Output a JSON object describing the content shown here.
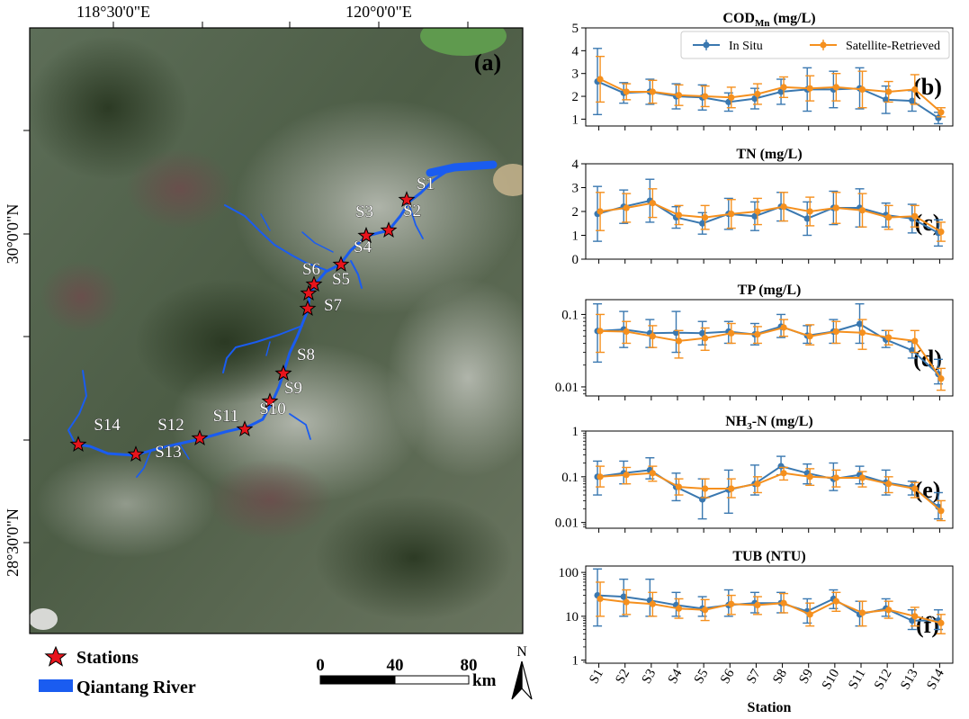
{
  "map": {
    "panel_label": "(a)",
    "lon_labels": [
      "118°30'0\"E",
      "120°0'0\"E"
    ],
    "lat_labels": [
      "30°0'0\"N",
      "28°30'0\"N"
    ],
    "north_label": "N",
    "scale_ticks": [
      "0",
      "40",
      "80"
    ],
    "scale_unit": "km",
    "legend": {
      "stations_label": "Stations",
      "river_label": "Qiantang River",
      "station_color": "#e8141c",
      "river_color": "#1a5cf0"
    },
    "stations": [
      "S1",
      "S2",
      "S3",
      "S4",
      "S5",
      "S6",
      "S7",
      "S8",
      "S9",
      "S10",
      "S11",
      "S12",
      "S13",
      "S14"
    ]
  },
  "chart_data": [
    {
      "type": "line",
      "panel": "(b)",
      "title_main": "COD",
      "title_sub": "Mn",
      "title_tail": " (mg/L)",
      "scale": "linear",
      "ylim": [
        0.7,
        5
      ],
      "yticks": [
        1,
        2,
        3,
        4,
        5
      ],
      "ytick_labels": [
        "1",
        "2",
        "3",
        "4",
        "5"
      ],
      "legend": [
        "In Situ",
        "Satellite-Retrieved"
      ],
      "series": [
        {
          "name": "In Situ",
          "values": [
            2.65,
            2.15,
            2.2,
            2.0,
            1.95,
            1.75,
            1.9,
            2.2,
            2.3,
            2.3,
            2.35,
            1.85,
            1.8,
            1.05
          ],
          "errors": [
            1.45,
            0.45,
            0.55,
            0.55,
            0.55,
            0.4,
            0.45,
            0.55,
            0.95,
            0.8,
            0.9,
            0.6,
            0.45,
            0.25
          ]
        },
        {
          "name": "Satellite-Retrieved",
          "values": [
            2.75,
            2.2,
            2.2,
            2.05,
            2.0,
            1.95,
            2.1,
            2.4,
            2.35,
            2.4,
            2.3,
            2.2,
            2.3,
            1.3
          ],
          "errors": [
            1.0,
            0.35,
            0.5,
            0.45,
            0.45,
            0.45,
            0.45,
            0.45,
            0.55,
            0.6,
            0.8,
            0.45,
            0.65,
            0.2
          ]
        }
      ]
    },
    {
      "type": "line",
      "panel": "(c)",
      "title_main": "TN",
      "title_sub": "",
      "title_tail": " (mg/L)",
      "scale": "linear",
      "ylim": [
        0,
        4
      ],
      "yticks": [
        0,
        1,
        2,
        3,
        4
      ],
      "ytick_labels": [
        "0",
        "1",
        "2",
        "3",
        "4"
      ],
      "series": [
        {
          "name": "In Situ",
          "values": [
            1.9,
            2.2,
            2.45,
            1.75,
            1.5,
            1.9,
            1.8,
            2.2,
            1.7,
            2.15,
            2.15,
            1.85,
            1.7,
            1.1
          ],
          "errors": [
            1.15,
            0.7,
            0.9,
            0.45,
            0.45,
            0.65,
            0.6,
            0.6,
            0.7,
            0.7,
            0.8,
            0.5,
            0.6,
            0.55
          ]
        },
        {
          "name": "Satellite-Retrieved",
          "values": [
            2.0,
            2.15,
            2.35,
            1.85,
            1.75,
            1.9,
            2.0,
            2.2,
            2.0,
            2.15,
            2.05,
            1.75,
            1.8,
            1.15
          ],
          "errors": [
            0.8,
            0.6,
            0.6,
            0.4,
            0.5,
            0.6,
            0.55,
            0.6,
            0.6,
            0.65,
            0.7,
            0.5,
            0.45,
            0.4
          ]
        }
      ]
    },
    {
      "type": "line",
      "panel": "(d)",
      "title_main": "TP",
      "title_sub": "",
      "title_tail": " (mg/L)",
      "scale": "log",
      "ylim": [
        0.0075,
        0.16
      ],
      "yticks": [
        0.01,
        0.1
      ],
      "ytick_labels": [
        "0.01",
        "0.1"
      ],
      "series": [
        {
          "name": "In Situ",
          "values": [
            0.059,
            0.062,
            0.055,
            0.056,
            0.055,
            0.058,
            0.053,
            0.068,
            0.051,
            0.058,
            0.074,
            0.045,
            0.032,
            0.015
          ],
          "lo": [
            0.022,
            0.035,
            0.035,
            0.03,
            0.038,
            0.04,
            0.038,
            0.048,
            0.04,
            0.04,
            0.04,
            0.035,
            0.025,
            0.011
          ],
          "hi": [
            0.14,
            0.11,
            0.085,
            0.11,
            0.08,
            0.08,
            0.075,
            0.1,
            0.07,
            0.085,
            0.14,
            0.06,
            0.042,
            0.024
          ]
        },
        {
          "name": "Satellite-Retrieved",
          "values": [
            0.059,
            0.058,
            0.05,
            0.043,
            0.047,
            0.055,
            0.053,
            0.066,
            0.05,
            0.058,
            0.056,
            0.048,
            0.043,
            0.013
          ],
          "lo": [
            0.03,
            0.04,
            0.035,
            0.025,
            0.032,
            0.04,
            0.04,
            0.05,
            0.038,
            0.04,
            0.033,
            0.038,
            0.03,
            0.009
          ],
          "hi": [
            0.1,
            0.08,
            0.07,
            0.06,
            0.065,
            0.075,
            0.068,
            0.085,
            0.072,
            0.08,
            0.085,
            0.06,
            0.06,
            0.018
          ]
        }
      ]
    },
    {
      "type": "line",
      "panel": "(e)",
      "title_main": "NH",
      "title_sub": "3",
      "title_tail": "-N (mg/L)",
      "scale": "log",
      "ylim": [
        0.0075,
        1
      ],
      "yticks": [
        0.01,
        0.1,
        1
      ],
      "ytick_labels": [
        "0.01",
        "0.1",
        "1"
      ],
      "series": [
        {
          "name": "In Situ",
          "values": [
            0.1,
            0.12,
            0.14,
            0.06,
            0.032,
            0.052,
            0.07,
            0.17,
            0.12,
            0.09,
            0.11,
            0.075,
            0.06,
            0.022
          ],
          "lo": [
            0.04,
            0.07,
            0.09,
            0.03,
            0.012,
            0.016,
            0.04,
            0.11,
            0.07,
            0.05,
            0.07,
            0.04,
            0.04,
            0.012
          ],
          "hi": [
            0.22,
            0.22,
            0.26,
            0.12,
            0.09,
            0.14,
            0.18,
            0.28,
            0.19,
            0.2,
            0.17,
            0.14,
            0.08,
            0.045
          ]
        },
        {
          "name": "Satellite-Retrieved",
          "values": [
            0.1,
            0.11,
            0.12,
            0.06,
            0.055,
            0.055,
            0.07,
            0.12,
            0.1,
            0.095,
            0.095,
            0.07,
            0.055,
            0.018
          ],
          "lo": [
            0.06,
            0.07,
            0.08,
            0.04,
            0.035,
            0.035,
            0.045,
            0.085,
            0.065,
            0.06,
            0.06,
            0.045,
            0.035,
            0.011
          ],
          "hi": [
            0.17,
            0.16,
            0.17,
            0.09,
            0.09,
            0.09,
            0.1,
            0.16,
            0.15,
            0.14,
            0.13,
            0.1,
            0.075,
            0.03
          ]
        }
      ]
    },
    {
      "type": "line",
      "panel": "(f)",
      "title_main": "TUB",
      "title_sub": "",
      "title_tail": " (NTU)",
      "scale": "log",
      "ylim": [
        0.85,
        140
      ],
      "yticks": [
        1,
        10,
        100
      ],
      "ytick_labels": [
        "1",
        "10",
        "100"
      ],
      "series": [
        {
          "name": "In Situ",
          "values": [
            30,
            28,
            23,
            18,
            15,
            18,
            20,
            20,
            13,
            25,
            11,
            15,
            8,
            8
          ],
          "lo": [
            6,
            10,
            10,
            10,
            10,
            10,
            12,
            12,
            7,
            15,
            6,
            10,
            5,
            5
          ],
          "hi": [
            120,
            70,
            70,
            35,
            28,
            40,
            35,
            35,
            25,
            40,
            22,
            25,
            14,
            14
          ]
        },
        {
          "name": "Satellite-Retrieved",
          "values": [
            25,
            21,
            19,
            15,
            14,
            19,
            18,
            20,
            11,
            22,
            12,
            14,
            10,
            7
          ],
          "lo": [
            10,
            11,
            10,
            9,
            8,
            11,
            11,
            12,
            6,
            13,
            6,
            9,
            6,
            4
          ],
          "hi": [
            60,
            40,
            35,
            25,
            24,
            30,
            28,
            33,
            20,
            35,
            22,
            22,
            16,
            11
          ]
        }
      ]
    }
  ],
  "chart_common": {
    "categories": [
      "S1",
      "S2",
      "S3",
      "S4",
      "S5",
      "S6",
      "S7",
      "S8",
      "S9",
      "S10",
      "S11",
      "S12",
      "S13",
      "S14"
    ],
    "xlabel": "Station",
    "colors": {
      "In Situ": "#3a78b0",
      "Satellite-Retrieved": "#f5901e"
    }
  }
}
